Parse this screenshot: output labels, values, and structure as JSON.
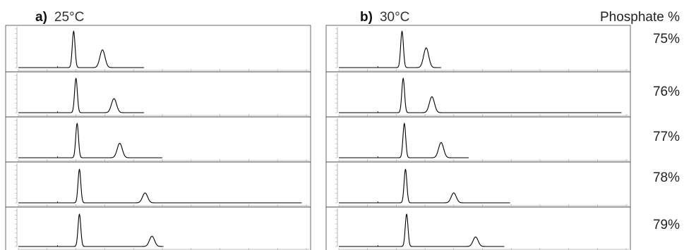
{
  "header": {
    "panel_a_letter": "a)",
    "panel_a_temp": "25°C",
    "panel_b_letter": "b)",
    "panel_b_temp": "30°C",
    "phosphate_label": "Phosphate %"
  },
  "rows": [
    {
      "label": "75%"
    },
    {
      "label": "76%"
    },
    {
      "label": "77%"
    },
    {
      "label": "78%"
    },
    {
      "label": "79%"
    }
  ],
  "chart_data": [
    {
      "type": "line",
      "title": "a) 25°C",
      "x_range": [
        0,
        25
      ],
      "line_color": "#000000",
      "series": [
        {
          "phosphate": "75%",
          "peak1_x": 4.8,
          "peak1_height": 0.92,
          "peak2_x": 7.3,
          "peak2_height": 0.45,
          "end_x": 10.9
        },
        {
          "phosphate": "76%",
          "peak1_x": 5.0,
          "peak1_height": 0.9,
          "peak2_x": 8.3,
          "peak2_height": 0.37,
          "end_x": 10.9
        },
        {
          "phosphate": "77%",
          "peak1_x": 5.1,
          "peak1_height": 0.9,
          "peak2_x": 8.8,
          "peak2_height": 0.38,
          "end_x": 12.5
        },
        {
          "phosphate": "78%",
          "peak1_x": 5.3,
          "peak1_height": 0.88,
          "peak2_x": 11.0,
          "peak2_height": 0.26,
          "end_x": 24.6
        },
        {
          "phosphate": "79%",
          "peak1_x": 5.3,
          "peak1_height": 0.88,
          "peak2_x": 11.6,
          "peak2_height": 0.28,
          "end_x": 12.6
        }
      ]
    },
    {
      "type": "line",
      "title": "b) 30°C",
      "x_range": [
        0,
        25
      ],
      "line_color": "#000000",
      "series": [
        {
          "phosphate": "75%",
          "peak1_x": 5.5,
          "peak1_height": 0.92,
          "peak2_x": 7.6,
          "peak2_height": 0.5,
          "end_x": 8.9
        },
        {
          "phosphate": "76%",
          "peak1_x": 5.6,
          "peak1_height": 0.9,
          "peak2_x": 8.1,
          "peak2_height": 0.42,
          "end_x": 24.6
        },
        {
          "phosphate": "77%",
          "peak1_x": 5.7,
          "peak1_height": 0.9,
          "peak2_x": 8.9,
          "peak2_height": 0.4,
          "end_x": 11.3
        },
        {
          "phosphate": "78%",
          "peak1_x": 5.8,
          "peak1_height": 0.88,
          "peak2_x": 10.0,
          "peak2_height": 0.26,
          "end_x": 14.9
        },
        {
          "phosphate": "79%",
          "peak1_x": 5.9,
          "peak1_height": 0.88,
          "peak2_x": 11.9,
          "peak2_height": 0.26,
          "end_x": 14.4
        }
      ]
    }
  ]
}
